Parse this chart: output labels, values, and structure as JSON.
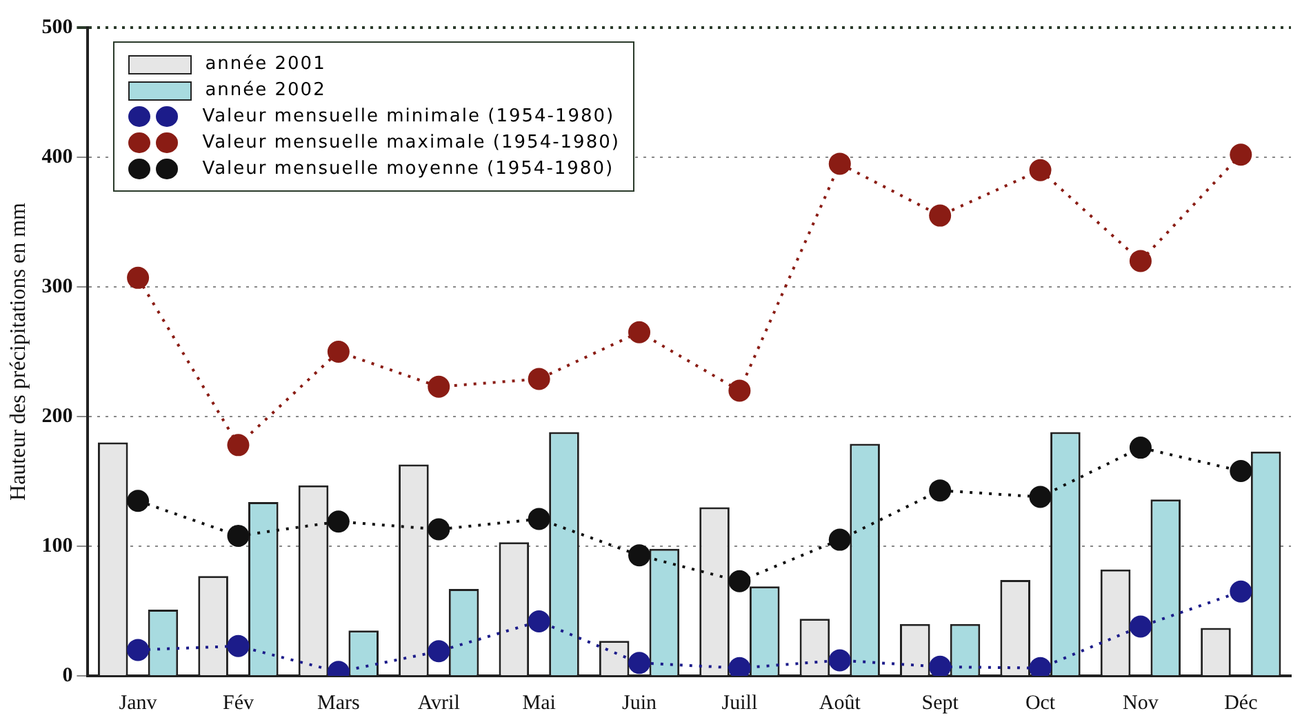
{
  "chart_data": {
    "type": "bar",
    "ylabel": "Hauteur des précipitations en mm",
    "categories": [
      "Janv",
      "Fév",
      "Mars",
      "Avril",
      "Mai",
      "Juin",
      "Juill",
      "Août",
      "Sept",
      "Oct",
      "Nov",
      "Déc"
    ],
    "series": [
      {
        "name": "année 2001",
        "color": "#e6e6e6",
        "values": [
          180,
          77,
          147,
          163,
          103,
          27,
          130,
          44,
          40,
          74,
          82,
          37
        ]
      },
      {
        "name": "année 2002",
        "color": "#a8dbe0",
        "values": [
          51,
          134,
          35,
          67,
          188,
          98,
          69,
          179,
          40,
          188,
          136,
          173
        ]
      },
      {
        "name": "Valeur mensuelle minimale (1954-1980)",
        "type": "line",
        "color": "#1c1c8a",
        "values": [
          20,
          23,
          3,
          19,
          42,
          10,
          6,
          12,
          7,
          6,
          38,
          65
        ]
      },
      {
        "name": "Valeur mensuelle maximale (1954-1980)",
        "type": "line",
        "color": "#8a1c14",
        "values": [
          307,
          178,
          250,
          223,
          229,
          265,
          220,
          395,
          355,
          390,
          320,
          402
        ]
      },
      {
        "name": "Valeur mensuelle moyenne (1954-1980)",
        "type": "line",
        "color": "#111111",
        "values": [
          135,
          108,
          119,
          113,
          121,
          93,
          73,
          105,
          143,
          138,
          176,
          158
        ]
      }
    ],
    "ylim": [
      0,
      500
    ],
    "yticks": [
      0,
      100,
      200,
      300,
      400,
      500
    ],
    "grid": "y",
    "legend": "top left",
    "marker": "circle",
    "line_style": "dotted"
  }
}
